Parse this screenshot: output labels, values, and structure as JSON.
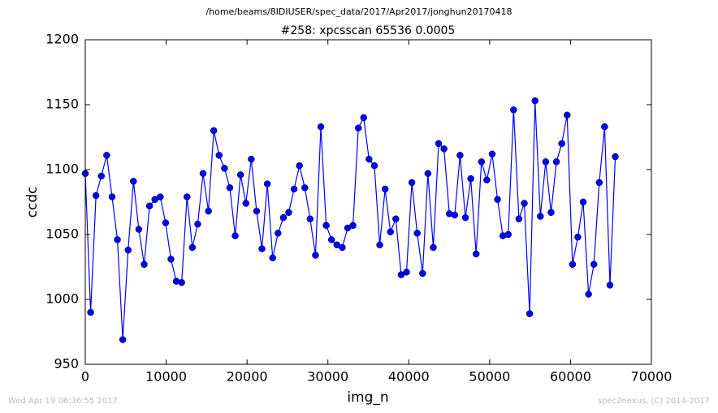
{
  "chart_data": {
    "type": "line",
    "suptitle": "/home/beams/8IDIUSER/spec_data/2017/Apr2017/jonghun20170418",
    "title": "#258: xpcsscan 65536 0.0005",
    "xlabel": "img_n",
    "ylabel": "ccdc",
    "timestamp": "Wed Apr 19 06:36:55 2017",
    "credit": "spec2nexus, (C) 2014-2017",
    "color": "#0000ff",
    "marker": "circle",
    "xlim": [
      0,
      70000
    ],
    "xticks": [
      0,
      10000,
      20000,
      30000,
      40000,
      50000,
      60000,
      70000
    ],
    "ylim": [
      950,
      1200
    ],
    "yticks": [
      950,
      1000,
      1050,
      1100,
      1150,
      1200
    ],
    "x": [
      0,
      662,
      1324,
      1986,
      2648,
      3310,
      3972,
      4634,
      5296,
      5958,
      6620,
      7282,
      7944,
      8606,
      9268,
      9930,
      10592,
      11254,
      11916,
      12578,
      13240,
      13902,
      14564,
      15226,
      15888,
      16550,
      17212,
      17874,
      18536,
      19198,
      19860,
      20522,
      21184,
      21846,
      22508,
      23170,
      23832,
      24494,
      25156,
      25818,
      26480,
      27142,
      27804,
      28466,
      29128,
      29790,
      30452,
      31114,
      31776,
      32438,
      33100,
      33762,
      34424,
      35086,
      35748,
      36410,
      37072,
      37734,
      38396,
      39058,
      39720,
      40382,
      41044,
      41706,
      42368,
      43030,
      43692,
      44354,
      45016,
      45678,
      46340,
      47002,
      47664,
      48326,
      48988,
      49650,
      50312,
      50974,
      51636,
      52298,
      52960,
      53622,
      54284,
      54946,
      55608,
      56270,
      56932,
      57594,
      58256,
      58918,
      59580,
      60242,
      60904,
      61566,
      62228,
      62890,
      63552,
      64214,
      64876,
      65538
    ],
    "values": [
      1097,
      990,
      1080,
      1095,
      1111,
      1079,
      1046,
      969,
      1038,
      1091,
      1054,
      1027,
      1072,
      1077,
      1079,
      1059,
      1031,
      1014,
      1013,
      1079,
      1040,
      1058,
      1097,
      1068,
      1130,
      1111,
      1101,
      1086,
      1049,
      1096,
      1074,
      1108,
      1068,
      1039,
      1089,
      1032,
      1051,
      1063,
      1067,
      1085,
      1103,
      1086,
      1062,
      1034,
      1133,
      1057,
      1046,
      1042,
      1040,
      1055,
      1057,
      1132,
      1140,
      1108,
      1103,
      1042,
      1085,
      1052,
      1062,
      1019,
      1021,
      1090,
      1051,
      1020,
      1097,
      1040,
      1120,
      1116,
      1066,
      1065,
      1111,
      1063,
      1093,
      1035,
      1106,
      1092,
      1112,
      1077,
      1049,
      1050,
      1146,
      1062,
      1074,
      989,
      1153,
      1064,
      1106,
      1067,
      1106,
      1120,
      1142,
      1027,
      1048,
      1075,
      1004,
      1027,
      1090,
      1133,
      1011,
      1110
    ]
  }
}
